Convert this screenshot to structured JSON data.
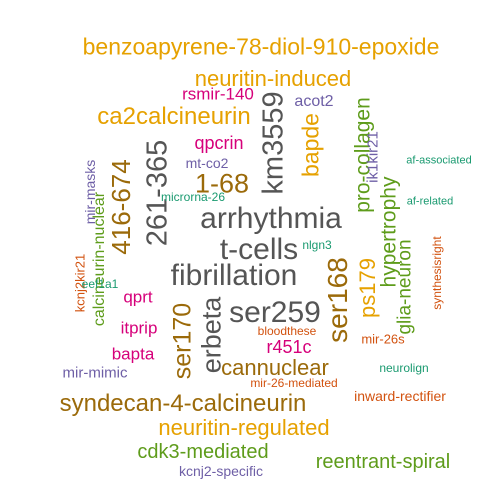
{
  "palette": {
    "gold": "#e6a100",
    "magenta": "#d6007a",
    "purple": "#6e5fa6",
    "dark": "#555555",
    "brown": "#9b6a0a",
    "green": "#5e9c1b",
    "teal": "#1a9a70",
    "orange": "#d2520f"
  },
  "words": [
    {
      "text": "benzoapyrene-78-diol-910-epoxide",
      "color": "gold"
    },
    {
      "text": "neuritin-induced",
      "color": "gold"
    },
    {
      "text": "rsmir-140",
      "color": "magenta"
    },
    {
      "text": "ca2calcineurin",
      "color": "gold"
    },
    {
      "text": "acot2",
      "color": "purple"
    },
    {
      "text": "km3559",
      "color": "dark"
    },
    {
      "text": "pro-collagen",
      "color": "green"
    },
    {
      "text": "ik1kir21",
      "color": "purple"
    },
    {
      "text": "bapde",
      "color": "gold"
    },
    {
      "text": "qpcrin",
      "color": "magenta"
    },
    {
      "text": "mt-co2",
      "color": "purple"
    },
    {
      "text": "af-associated",
      "color": "teal"
    },
    {
      "text": "mir-masks",
      "color": "purple"
    },
    {
      "text": "261-365",
      "color": "dark"
    },
    {
      "text": "416-674",
      "color": "brown"
    },
    {
      "text": "1-68",
      "color": "brown"
    },
    {
      "text": "calcineurin-nuclear",
      "color": "green"
    },
    {
      "text": "microrna-26",
      "color": "teal"
    },
    {
      "text": "af-related",
      "color": "teal"
    },
    {
      "text": "arrhythmia",
      "color": "dark"
    },
    {
      "text": "hypertrophy",
      "color": "green"
    },
    {
      "text": "t-cells",
      "color": "dark"
    },
    {
      "text": "nlgn3",
      "color": "teal"
    },
    {
      "text": "synthesisright",
      "color": "orange"
    },
    {
      "text": "kcnj2kir21",
      "color": "orange"
    },
    {
      "text": "fibrillation",
      "color": "dark"
    },
    {
      "text": "ser168",
      "color": "brown"
    },
    {
      "text": "ps179",
      "color": "gold"
    },
    {
      "text": "glia-neuron",
      "color": "green"
    },
    {
      "text": "eef1a1",
      "color": "teal"
    },
    {
      "text": "qprt",
      "color": "magenta"
    },
    {
      "text": "ser170",
      "color": "brown"
    },
    {
      "text": "erbeta",
      "color": "dark"
    },
    {
      "text": "ser259",
      "color": "dark"
    },
    {
      "text": "itprip",
      "color": "magenta"
    },
    {
      "text": "bloodthese",
      "color": "orange"
    },
    {
      "text": "r451c",
      "color": "magenta"
    },
    {
      "text": "mir-26s",
      "color": "orange"
    },
    {
      "text": "bapta",
      "color": "magenta"
    },
    {
      "text": "cannuclear",
      "color": "brown"
    },
    {
      "text": "mir-mimic",
      "color": "purple"
    },
    {
      "text": "neurolign",
      "color": "teal"
    },
    {
      "text": "mir-26-mediated",
      "color": "orange"
    },
    {
      "text": "syndecan-4-calcineurin",
      "color": "brown"
    },
    {
      "text": "inward-rectifier",
      "color": "orange"
    },
    {
      "text": "neuritin-regulated",
      "color": "gold"
    },
    {
      "text": "cdk3-mediated",
      "color": "green"
    },
    {
      "text": "reentrant-spiral",
      "color": "green"
    },
    {
      "text": "kcnj2-specific",
      "color": "purple"
    }
  ]
}
